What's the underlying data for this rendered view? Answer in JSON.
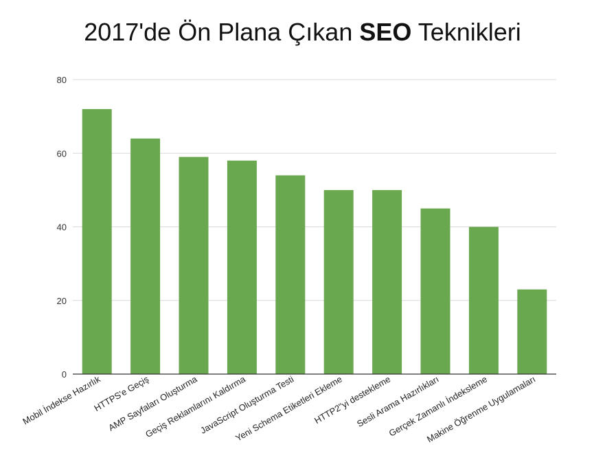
{
  "chart_data": {
    "type": "bar",
    "title_prefix": "2017'de Ön Plana Çıkan ",
    "title_bold": "SEO",
    "title_suffix": " Teknikleri",
    "categories": [
      "Mobil İndekse Hazırlık",
      "HTTPS'e Geçiş",
      "AMP Sayfaları Oluşturma",
      "Geçiş Reklamlarını Kaldırma",
      "JavaScript Oluşturma Testi",
      "Yeni Schema Etiketleri Ekleme",
      "HTTP2\"yi destekleme",
      "Sesli Arama Hazırlıkları",
      "Gerçek Zamanlı İndeksleme",
      "Makine Öğrenme Uygulamaları"
    ],
    "values": [
      72,
      64,
      59,
      58,
      54,
      50,
      50,
      45,
      40,
      23
    ],
    "ylim": [
      0,
      80
    ],
    "yticks": [
      0,
      20,
      40,
      60,
      80
    ],
    "grid": true,
    "bar_color": "#6aa84f",
    "grid_color": "#d9d9d9",
    "axis_color": "#333333"
  }
}
